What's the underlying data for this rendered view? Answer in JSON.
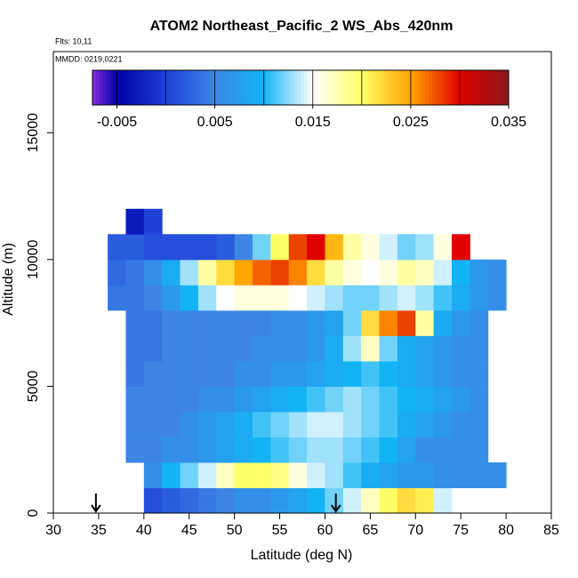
{
  "chart_data": {
    "type": "heatmap",
    "title": "ATOM2 Northeast_Pacific_2 WS_Abs_420nm",
    "annotations": [
      "Flts: 10,11",
      "MMDD: 0219,0221"
    ],
    "x_label": "Latitude (deg N)",
    "y_label": "Altitude (m)",
    "xlim": [
      30,
      85
    ],
    "ylim": [
      0,
      18200
    ],
    "xticks": [
      30,
      35,
      40,
      45,
      50,
      55,
      60,
      65,
      70,
      75,
      80,
      85
    ],
    "yticks": [
      0,
      5000,
      10000,
      15000
    ],
    "x": [
      36,
      38,
      40,
      42,
      44,
      46,
      48,
      50,
      52,
      54,
      56,
      58,
      60,
      62,
      64,
      66,
      68,
      70,
      72,
      74,
      76,
      78,
      80
    ],
    "y": [
      0,
      1000,
      2000,
      3000,
      4000,
      5000,
      6000,
      7000,
      8000,
      9000,
      10000,
      11000,
      12000
    ],
    "values": [
      [
        null,
        null,
        0.001,
        0.002,
        0.003,
        0.004,
        0.005,
        0.006,
        0.006,
        0.007,
        0.008,
        0.01,
        0.012,
        0.014,
        0.017,
        0.02,
        0.022,
        0.021,
        0.014,
        null,
        null,
        null
      ],
      [
        null,
        null,
        0.006,
        0.01,
        0.012,
        0.014,
        0.017,
        0.02,
        0.02,
        0.019,
        0.016,
        0.014,
        0.013,
        0.011,
        0.009,
        0.008,
        0.007,
        0.007,
        0.006,
        0.006,
        0.006,
        0.006
      ],
      [
        null,
        0.005,
        0.005,
        0.006,
        0.006,
        0.007,
        0.008,
        0.009,
        0.01,
        0.011,
        0.012,
        0.013,
        0.013,
        0.012,
        0.011,
        0.01,
        0.008,
        0.006,
        0.006,
        0.006,
        0.006,
        null
      ],
      [
        null,
        0.005,
        0.005,
        0.005,
        0.006,
        0.007,
        0.008,
        0.009,
        0.011,
        0.012,
        0.013,
        0.014,
        0.014,
        0.013,
        0.012,
        0.011,
        0.009,
        0.008,
        0.007,
        0.006,
        0.006,
        null
      ],
      [
        null,
        0.005,
        0.005,
        0.005,
        0.005,
        0.006,
        0.006,
        0.007,
        0.008,
        0.009,
        0.01,
        0.011,
        0.012,
        0.013,
        0.012,
        0.011,
        0.01,
        0.009,
        0.008,
        0.007,
        0.006,
        null
      ],
      [
        null,
        0.004,
        0.005,
        0.005,
        0.005,
        0.005,
        0.005,
        0.006,
        0.006,
        0.007,
        0.007,
        0.008,
        0.009,
        0.01,
        0.011,
        0.01,
        0.009,
        0.008,
        0.007,
        0.006,
        0.006,
        null
      ],
      [
        null,
        0.004,
        0.004,
        0.005,
        0.005,
        0.005,
        0.005,
        0.005,
        0.006,
        0.006,
        0.006,
        0.007,
        0.009,
        0.013,
        0.017,
        0.012,
        0.009,
        0.008,
        0.007,
        0.006,
        0.006,
        null
      ],
      [
        null,
        0.004,
        0.004,
        0.005,
        0.005,
        0.005,
        0.005,
        0.005,
        0.005,
        0.006,
        0.006,
        0.007,
        0.008,
        0.012,
        0.022,
        0.026,
        0.028,
        0.018,
        0.009,
        0.007,
        0.006,
        null
      ],
      [
        0.004,
        0.004,
        0.005,
        0.007,
        0.01,
        0.013,
        0.015,
        0.016,
        0.016,
        0.016,
        0.015,
        0.014,
        0.013,
        0.012,
        0.012,
        0.013,
        0.014,
        0.013,
        0.011,
        0.009,
        0.007,
        0.006
      ],
      [
        0.003,
        0.004,
        0.006,
        0.009,
        0.013,
        0.018,
        0.022,
        0.025,
        0.027,
        0.028,
        0.026,
        0.022,
        0.018,
        0.016,
        0.015,
        0.016,
        0.018,
        0.017,
        0.014,
        0.01,
        0.007,
        0.006
      ],
      [
        0.002,
        0.002,
        0.001,
        0.001,
        0.001,
        0.001,
        0.002,
        0.005,
        0.012,
        0.02,
        0.028,
        0.03,
        0.024,
        0.018,
        0.016,
        0.014,
        0.012,
        0.013,
        0.016,
        0.03,
        null,
        null
      ],
      [
        null,
        -0.003,
        0.0,
        null,
        null,
        null,
        null,
        null,
        null,
        null,
        null,
        null,
        null,
        null,
        null,
        null,
        null,
        null,
        null,
        null,
        null,
        null
      ]
    ],
    "zlim": [
      -0.0075,
      0.035
    ],
    "zticks": [
      -0.005,
      0.005,
      0.015,
      0.025,
      0.035
    ],
    "zbreaks": [
      -0.005,
      0,
      0.005,
      0.01,
      0.015,
      0.02,
      0.025,
      0.03
    ],
    "colorscale": [
      [
        -0.0075,
        "#8a2be2"
      ],
      [
        -0.005,
        "#0000a8"
      ],
      [
        0,
        "#1e40d8"
      ],
      [
        0.005,
        "#3d86e6"
      ],
      [
        0.01,
        "#12b4f5"
      ],
      [
        0.015,
        "#ffffff"
      ],
      [
        0.02,
        "#ffff66"
      ],
      [
        0.025,
        "#ffa500"
      ],
      [
        0.03,
        "#e00000"
      ],
      [
        0.035,
        "#8b1a1a"
      ]
    ],
    "arrows": [
      34.7,
      61.2
    ]
  }
}
